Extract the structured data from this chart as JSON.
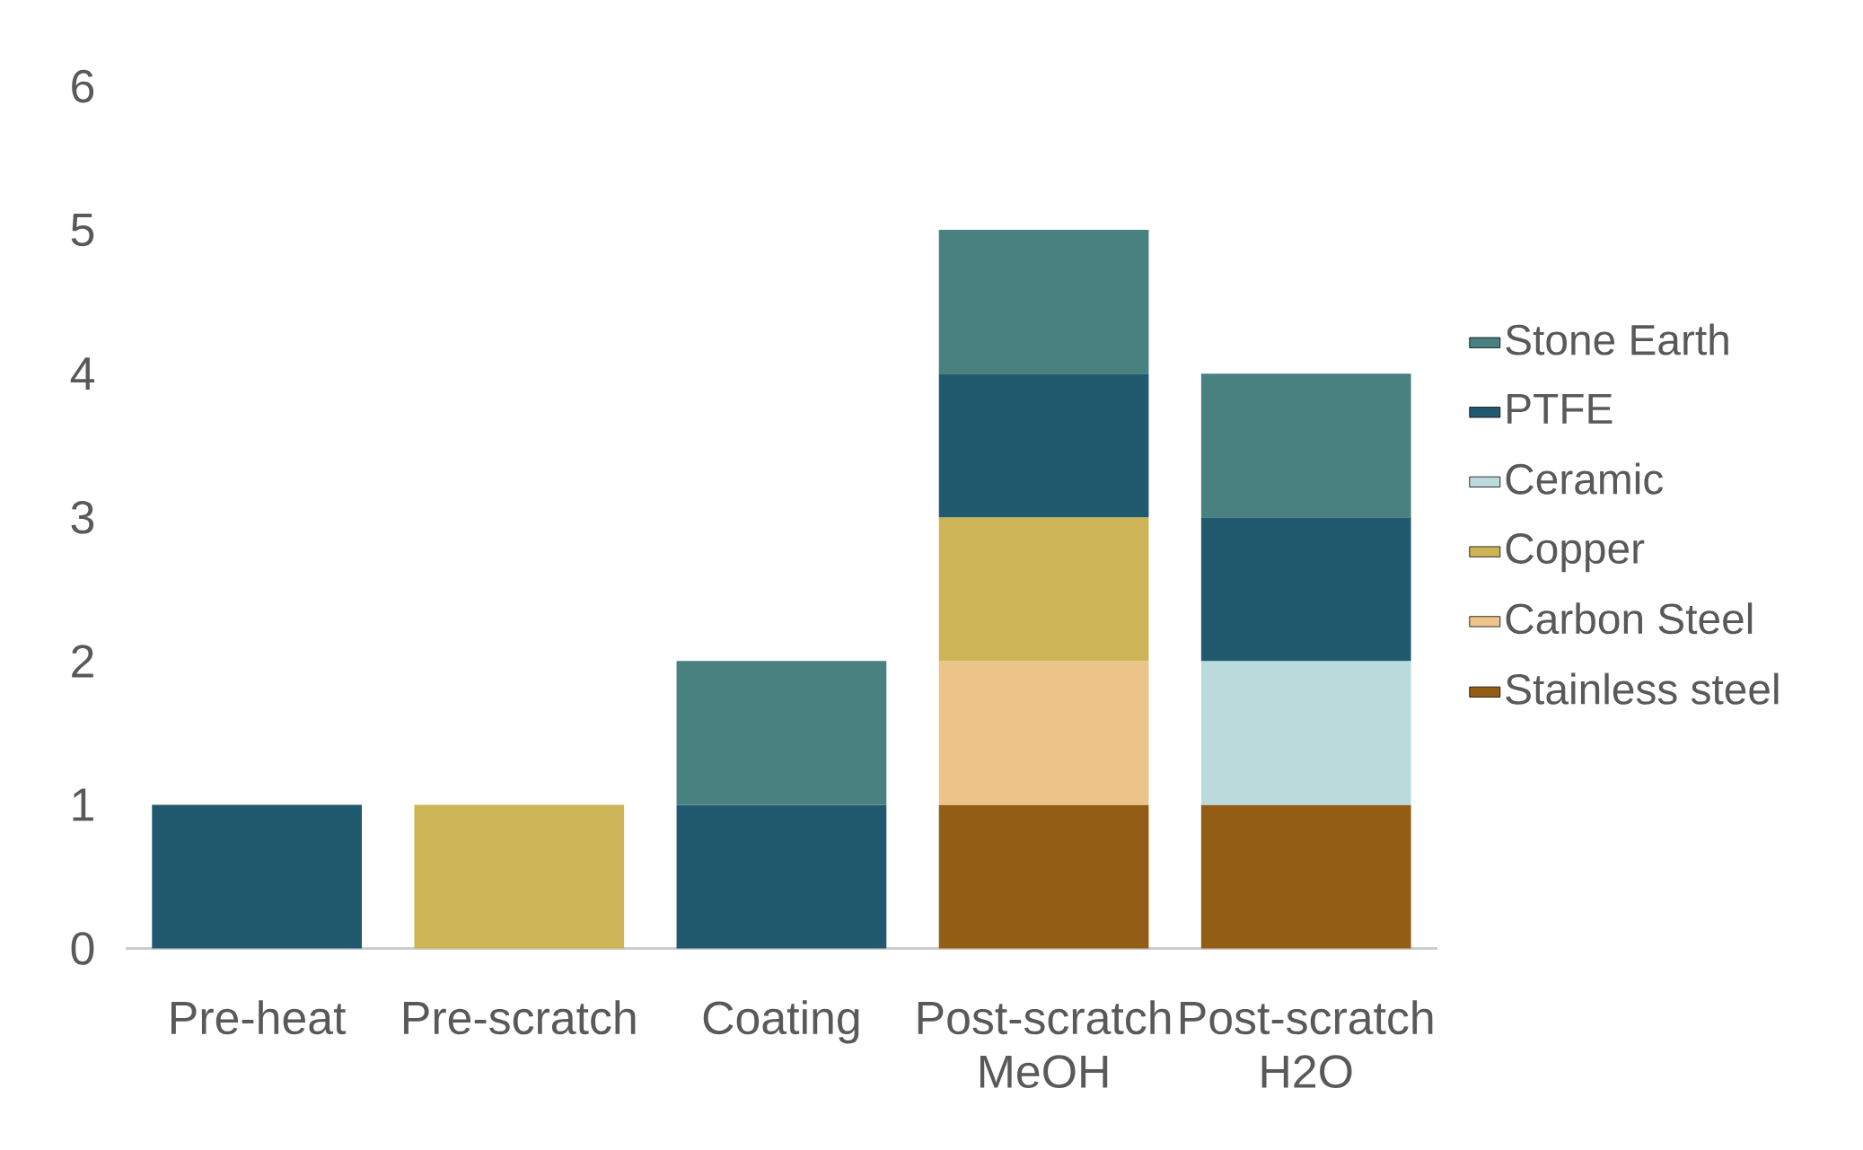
{
  "chart_data": {
    "type": "bar",
    "stacked": true,
    "categories": [
      "Pre-heat",
      "Pre-scratch",
      "Coating",
      "Post-scratch MeOH",
      "Post-scratch H2O"
    ],
    "series": [
      {
        "name": "Stainless steel",
        "color": "#935d15",
        "values": [
          null,
          null,
          null,
          1,
          1
        ]
      },
      {
        "name": "Carbon Steel",
        "color": "#ecc388",
        "values": [
          null,
          null,
          null,
          1,
          null
        ]
      },
      {
        "name": "Copper",
        "color": "#cdb557",
        "values": [
          null,
          1,
          null,
          1,
          null
        ]
      },
      {
        "name": "Ceramic",
        "color": "#badadb",
        "values": [
          null,
          null,
          null,
          null,
          1
        ]
      },
      {
        "name": "PTFE",
        "color": "#215a6e",
        "values": [
          1,
          null,
          1,
          1,
          1
        ]
      },
      {
        "name": "Stone Earth",
        "color": "#48817f",
        "values": [
          null,
          null,
          1,
          1,
          1
        ]
      }
    ],
    "ylim": [
      0,
      6
    ],
    "yticks": [
      0,
      1,
      2,
      3,
      4,
      5,
      6
    ],
    "legend": "right"
  }
}
